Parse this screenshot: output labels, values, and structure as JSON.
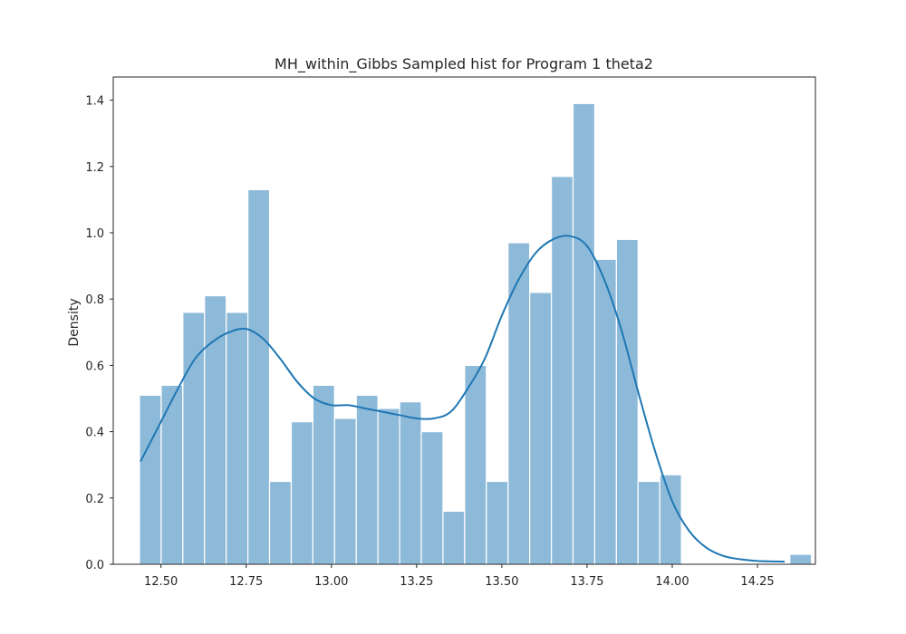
{
  "chart_data": {
    "type": "histogram",
    "title": "MH_within_Gibbs Sampled hist for Program 1 theta2",
    "xlabel": "",
    "ylabel": "Density",
    "xlim": [
      12.36,
      14.42
    ],
    "ylim": [
      0,
      1.47
    ],
    "x_ticks": [
      12.5,
      12.75,
      13.0,
      13.25,
      13.5,
      13.75,
      14.0,
      14.25
    ],
    "x_tick_labels": [
      "12.50",
      "12.75",
      "13.00",
      "13.25",
      "13.50",
      "13.75",
      "14.00",
      "14.25"
    ],
    "y_ticks": [
      0,
      0.2,
      0.4,
      0.6,
      0.8,
      1.0,
      1.2,
      1.4
    ],
    "y_tick_labels": [
      "0.0",
      "0.2",
      "0.4",
      "0.6",
      "0.8",
      "1.0",
      "1.2",
      "1.4"
    ],
    "grid": false,
    "bin_start": 12.437,
    "bin_width": 0.0636,
    "values": [
      0.51,
      0.54,
      0.76,
      0.81,
      0.76,
      1.13,
      0.25,
      0.43,
      0.54,
      0.44,
      0.51,
      0.47,
      0.49,
      0.4,
      0.16,
      0.6,
      0.25,
      0.97,
      0.82,
      1.17,
      1.39,
      0.92,
      0.98,
      0.25,
      0.27,
      0,
      0,
      0,
      0,
      0,
      0.03
    ],
    "kde": {
      "x": [
        12.44,
        12.5,
        12.55,
        12.6,
        12.65,
        12.7,
        12.75,
        12.8,
        12.85,
        12.9,
        12.95,
        13.0,
        13.05,
        13.1,
        13.15,
        13.2,
        13.25,
        13.3,
        13.35,
        13.4,
        13.45,
        13.5,
        13.55,
        13.6,
        13.65,
        13.7,
        13.75,
        13.8,
        13.85,
        13.9,
        13.95,
        14.0,
        14.05,
        14.1,
        14.15,
        14.2,
        14.25,
        14.33
      ],
      "y": [
        0.31,
        0.43,
        0.53,
        0.62,
        0.67,
        0.7,
        0.71,
        0.68,
        0.62,
        0.55,
        0.5,
        0.48,
        0.48,
        0.47,
        0.46,
        0.45,
        0.44,
        0.44,
        0.46,
        0.53,
        0.62,
        0.75,
        0.86,
        0.94,
        0.98,
        0.99,
        0.96,
        0.86,
        0.71,
        0.52,
        0.34,
        0.19,
        0.1,
        0.05,
        0.025,
        0.015,
        0.01,
        0.008
      ]
    },
    "colors": {
      "bar_fill": "#8ebad9",
      "bar_edge": "#ffffff",
      "kde_line": "#1f77b4",
      "axes": "#262626"
    }
  }
}
